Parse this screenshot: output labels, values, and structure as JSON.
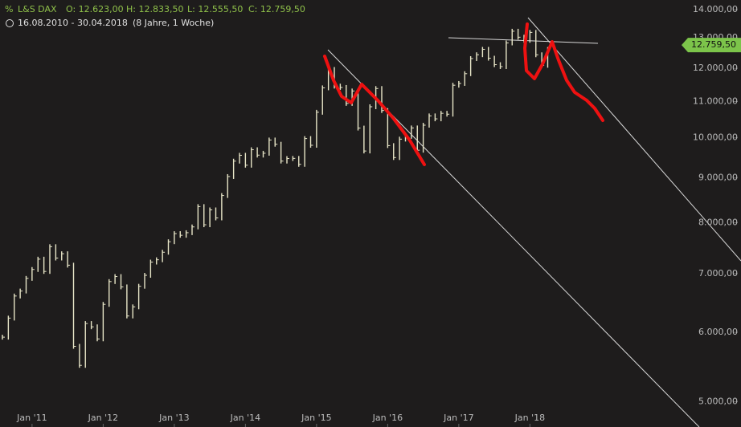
{
  "chart_data": {
    "type": "bar",
    "title": "L&S DAX",
    "ohlc": {
      "open": "O: 12.623,00",
      "high": "H: 12.833,50",
      "low": "L: 12.555,50",
      "close": "C: 12.759,50"
    },
    "period": "16.08.2010 - 30.04.2018",
    "duration": "(8 Jahre, 1 Woche)",
    "last_price": {
      "value": 12759.5,
      "label": "12.759,50"
    },
    "log_scale": true,
    "x": [
      "2010-08",
      "2010-09",
      "2010-10",
      "2010-11",
      "2010-12",
      "2011-01",
      "2011-02",
      "2011-03",
      "2011-04",
      "2011-05",
      "2011-06",
      "2011-07",
      "2011-08",
      "2011-09",
      "2011-10",
      "2011-11",
      "2011-12",
      "2012-01",
      "2012-02",
      "2012-03",
      "2012-04",
      "2012-05",
      "2012-06",
      "2012-07",
      "2012-08",
      "2012-09",
      "2012-10",
      "2012-11",
      "2012-12",
      "2013-01",
      "2013-02",
      "2013-03",
      "2013-04",
      "2013-05",
      "2013-06",
      "2013-07",
      "2013-08",
      "2013-09",
      "2013-10",
      "2013-11",
      "2013-12",
      "2014-01",
      "2014-02",
      "2014-03",
      "2014-04",
      "2014-05",
      "2014-06",
      "2014-07",
      "2014-08",
      "2014-09",
      "2014-10",
      "2014-11",
      "2014-12",
      "2015-01",
      "2015-02",
      "2015-03",
      "2015-04",
      "2015-05",
      "2015-06",
      "2015-07",
      "2015-08",
      "2015-09",
      "2015-10",
      "2015-11",
      "2015-12",
      "2016-01",
      "2016-02",
      "2016-03",
      "2016-04",
      "2016-05",
      "2016-06",
      "2016-07",
      "2016-08",
      "2016-09",
      "2016-10",
      "2016-11",
      "2016-12",
      "2017-01",
      "2017-02",
      "2017-03",
      "2017-04",
      "2017-05",
      "2017-06",
      "2017-07",
      "2017-08",
      "2017-09",
      "2017-10",
      "2017-11",
      "2017-12",
      "2018-01",
      "2018-02",
      "2018-03",
      "2018-04"
    ],
    "series": [
      {
        "color": "#e8e6c8",
        "values": [
          5925,
          6229,
          6601,
          6688,
          6914,
          7077,
          7272,
          7041,
          7514,
          7293,
          7376,
          7158,
          5784,
          5502,
          6141,
          6088,
          5898,
          6458,
          6856,
          6947,
          6761,
          6264,
          6416,
          6772,
          6970,
          7216,
          7260,
          7405,
          7612,
          7776,
          7742,
          7795,
          7914,
          8348,
          7959,
          8276,
          8103,
          8594,
          9033,
          9406,
          9552,
          9306,
          9692,
          9556,
          9603,
          9943,
          9833,
          9407,
          9470,
          9474,
          9327,
          9981,
          9806,
          10694,
          11402,
          11966,
          11454,
          11414,
          10945,
          11309,
          10259,
          9660,
          10850,
          11382,
          10743,
          9798,
          9495,
          9966,
          10039,
          10263,
          9680,
          10337,
          10593,
          10511,
          10665,
          10640,
          11481,
          11535,
          11834,
          12313,
          12438,
          12615,
          12325,
          12118,
          12056,
          12829,
          13230,
          13024,
          12918,
          13189,
          12436,
          12097,
          12612
        ]
      }
    ],
    "xticks": [
      {
        "value": "2011-01",
        "label": "Jan '11"
      },
      {
        "value": "2012-01",
        "label": "Jan '12"
      },
      {
        "value": "2013-01",
        "label": "Jan '13"
      },
      {
        "value": "2014-01",
        "label": "Jan '14"
      },
      {
        "value": "2015-01",
        "label": "Jan '15"
      },
      {
        "value": "2016-01",
        "label": "Jan '16"
      },
      {
        "value": "2017-01",
        "label": "Jan '17"
      },
      {
        "value": "2018-01",
        "label": "Jan '18"
      }
    ],
    "ylim": [
      4680,
      14360
    ],
    "yticks": [
      {
        "value": 14000,
        "label": "14.000,00"
      },
      {
        "value": 13000,
        "label": "13.000,00"
      },
      {
        "value": 12000,
        "label": "12.000,00"
      },
      {
        "value": 11000,
        "label": "11.000,00"
      },
      {
        "value": 10000,
        "label": "10.000,00"
      },
      {
        "value": 9000,
        "label": "9.000,00"
      },
      {
        "value": 8000,
        "label": "8.000,00"
      },
      {
        "value": 7000,
        "label": "7.000,00"
      },
      {
        "value": 6000,
        "label": "6.000,00"
      },
      {
        "value": 5000,
        "label": "5.000,00"
      }
    ]
  }
}
